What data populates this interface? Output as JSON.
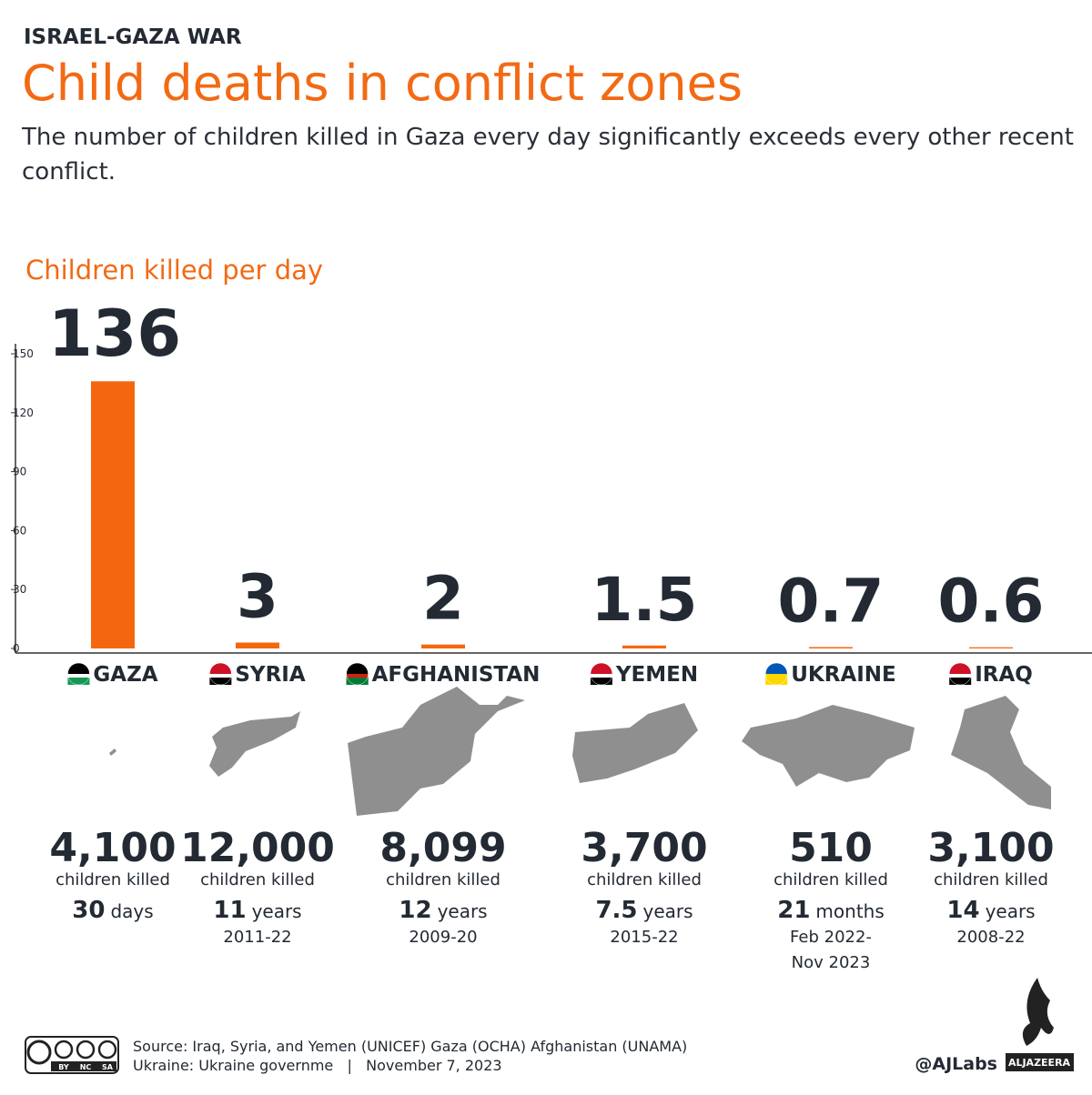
{
  "kicker": "ISRAEL-GAZA WAR",
  "chart_data": {
    "type": "bar",
    "title": "Child deaths in conflict zones",
    "subtitle": "The number of children killed in Gaza every day significantly exceeds every other recent conflict.",
    "y_label": "Children killed per day",
    "categories": [
      "GAZA",
      "SYRIA",
      "AFGHANISTAN",
      "YEMEN",
      "UKRAINE",
      "IRAQ"
    ],
    "values": [
      136,
      3,
      2,
      1.5,
      0.7,
      0.6
    ],
    "color": "#f5670f",
    "ylim": [
      0,
      150
    ],
    "yticks": [
      0,
      30,
      60,
      90,
      120,
      150
    ],
    "grid": false
  },
  "panels": [
    {
      "killed": "4,100",
      "caption": "children killed",
      "span": "30",
      "unit": "days"
    },
    {
      "killed": "12,000",
      "caption": "children killed",
      "span": "11",
      "unit": "years",
      "period": [
        "2011-22"
      ]
    },
    {
      "killed": "8,099",
      "caption": "children killed",
      "span": "12",
      "unit": "years",
      "period": [
        "2009-20"
      ]
    },
    {
      "killed": "3,700",
      "caption": "children killed",
      "span": "7.5",
      "unit": "years",
      "period": [
        "2015-22"
      ]
    },
    {
      "killed": "510",
      "caption": "children killed",
      "span": "21",
      "unit": "months",
      "period": [
        "Feb 2022-",
        "Nov 2023"
      ]
    },
    {
      "killed": "3,100",
      "caption": "children killed",
      "span": "14",
      "unit": "years",
      "period": [
        "2008-22"
      ]
    }
  ],
  "source": [
    "Source: Iraq, Syria, and Yemen (UNICEF) Gaza (OCHA) Afghanistan (UNAMA)",
    "Ukraine: Ukraine governme   |   November 7, 2023"
  ],
  "license": [
    "BY",
    "NC",
    "SA"
  ],
  "handle": "@AJLabs",
  "brand": "ALJAZEERA"
}
